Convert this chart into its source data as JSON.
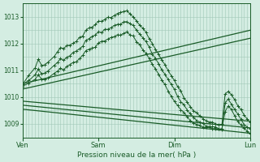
{
  "title": "Pression niveau de la mer( hPa )",
  "bg_color": "#d4ede2",
  "grid_color": "#a0c8b8",
  "line_color": "#1a5c28",
  "ylim": [
    1008.5,
    1013.5
  ],
  "yticks": [
    1009,
    1010,
    1011,
    1012,
    1013
  ],
  "xtick_labels": [
    "Ven",
    "Sam",
    "Dim",
    "Lun"
  ],
  "xtick_positions": [
    0,
    72,
    144,
    216
  ],
  "total_points": 217,
  "smooth_lines": [
    {
      "x0": 0,
      "y0": 1010.5,
      "x1": 216,
      "y1": 1012.5
    },
    {
      "x0": 0,
      "y0": 1010.3,
      "x1": 216,
      "y1": 1012.2
    },
    {
      "x0": 0,
      "y0": 1009.85,
      "x1": 216,
      "y1": 1009.1
    },
    {
      "x0": 0,
      "y0": 1009.7,
      "x1": 216,
      "y1": 1008.85
    },
    {
      "x0": 0,
      "y0": 1009.55,
      "x1": 216,
      "y1": 1008.65
    }
  ],
  "jagged_series": [
    {
      "points": [
        [
          0,
          1010.5
        ],
        [
          6,
          1010.8
        ],
        [
          12,
          1011.1
        ],
        [
          15,
          1011.4
        ],
        [
          18,
          1011.15
        ],
        [
          21,
          1011.2
        ],
        [
          24,
          1011.3
        ],
        [
          30,
          1011.55
        ],
        [
          33,
          1011.7
        ],
        [
          36,
          1011.85
        ],
        [
          39,
          1011.8
        ],
        [
          42,
          1011.9
        ],
        [
          45,
          1011.95
        ],
        [
          48,
          1012.05
        ],
        [
          51,
          1012.1
        ],
        [
          54,
          1012.2
        ],
        [
          57,
          1012.3
        ],
        [
          60,
          1012.5
        ],
        [
          63,
          1012.55
        ],
        [
          66,
          1012.65
        ],
        [
          69,
          1012.7
        ],
        [
          72,
          1012.8
        ],
        [
          75,
          1012.85
        ],
        [
          78,
          1012.9
        ],
        [
          81,
          1012.95
        ],
        [
          84,
          1013.0
        ],
        [
          87,
          1013.05
        ],
        [
          90,
          1013.1
        ],
        [
          93,
          1013.15
        ],
        [
          96,
          1013.2
        ],
        [
          99,
          1013.25
        ],
        [
          102,
          1013.1
        ],
        [
          105,
          1013.0
        ],
        [
          108,
          1012.85
        ],
        [
          111,
          1012.7
        ],
        [
          114,
          1012.55
        ],
        [
          117,
          1012.4
        ],
        [
          120,
          1012.2
        ],
        [
          123,
          1012.0
        ],
        [
          126,
          1011.8
        ],
        [
          129,
          1011.6
        ],
        [
          132,
          1011.4
        ],
        [
          135,
          1011.2
        ],
        [
          138,
          1011.0
        ],
        [
          141,
          1010.8
        ],
        [
          144,
          1010.6
        ],
        [
          147,
          1010.4
        ],
        [
          150,
          1010.2
        ],
        [
          153,
          1010.0
        ],
        [
          156,
          1009.8
        ],
        [
          159,
          1009.65
        ],
        [
          162,
          1009.5
        ],
        [
          165,
          1009.4
        ],
        [
          168,
          1009.3
        ],
        [
          171,
          1009.2
        ],
        [
          174,
          1009.15
        ],
        [
          177,
          1009.1
        ],
        [
          180,
          1009.05
        ],
        [
          183,
          1009.0
        ],
        [
          186,
          1008.95
        ],
        [
          189,
          1008.95
        ],
        [
          192,
          1010.1
        ],
        [
          195,
          1010.25
        ],
        [
          198,
          1010.1
        ],
        [
          201,
          1009.9
        ],
        [
          204,
          1009.7
        ],
        [
          207,
          1009.5
        ],
        [
          210,
          1009.3
        ],
        [
          213,
          1009.15
        ],
        [
          216,
          1009.05
        ]
      ]
    },
    {
      "points": [
        [
          0,
          1010.45
        ],
        [
          6,
          1010.65
        ],
        [
          12,
          1010.85
        ],
        [
          15,
          1011.05
        ],
        [
          18,
          1010.85
        ],
        [
          21,
          1010.9
        ],
        [
          24,
          1011.0
        ],
        [
          30,
          1011.2
        ],
        [
          33,
          1011.3
        ],
        [
          36,
          1011.45
        ],
        [
          39,
          1011.4
        ],
        [
          42,
          1011.5
        ],
        [
          45,
          1011.55
        ],
        [
          48,
          1011.65
        ],
        [
          51,
          1011.7
        ],
        [
          54,
          1011.8
        ],
        [
          57,
          1011.9
        ],
        [
          60,
          1012.1
        ],
        [
          63,
          1012.15
        ],
        [
          66,
          1012.25
        ],
        [
          69,
          1012.3
        ],
        [
          72,
          1012.4
        ],
        [
          75,
          1012.45
        ],
        [
          78,
          1012.5
        ],
        [
          81,
          1012.55
        ],
        [
          84,
          1012.6
        ],
        [
          87,
          1012.65
        ],
        [
          90,
          1012.7
        ],
        [
          93,
          1012.75
        ],
        [
          96,
          1012.8
        ],
        [
          99,
          1012.85
        ],
        [
          102,
          1012.75
        ],
        [
          105,
          1012.65
        ],
        [
          108,
          1012.5
        ],
        [
          111,
          1012.35
        ],
        [
          114,
          1012.2
        ],
        [
          117,
          1012.05
        ],
        [
          120,
          1011.85
        ],
        [
          123,
          1011.65
        ],
        [
          126,
          1011.45
        ],
        [
          129,
          1011.25
        ],
        [
          132,
          1011.05
        ],
        [
          135,
          1010.85
        ],
        [
          138,
          1010.65
        ],
        [
          141,
          1010.45
        ],
        [
          144,
          1010.25
        ],
        [
          147,
          1010.05
        ],
        [
          150,
          1009.85
        ],
        [
          153,
          1009.7
        ],
        [
          156,
          1009.55
        ],
        [
          159,
          1009.4
        ],
        [
          162,
          1009.25
        ],
        [
          165,
          1009.15
        ],
        [
          168,
          1009.05
        ],
        [
          171,
          1009.0
        ],
        [
          174,
          1008.95
        ],
        [
          177,
          1008.9
        ],
        [
          180,
          1008.87
        ],
        [
          183,
          1008.85
        ],
        [
          186,
          1008.83
        ],
        [
          189,
          1008.82
        ],
        [
          192,
          1009.75
        ],
        [
          195,
          1009.9
        ],
        [
          198,
          1009.75
        ],
        [
          201,
          1009.55
        ],
        [
          204,
          1009.35
        ],
        [
          207,
          1009.15
        ],
        [
          210,
          1009.0
        ],
        [
          213,
          1008.87
        ],
        [
          216,
          1008.78
        ]
      ]
    },
    {
      "points": [
        [
          0,
          1010.4
        ],
        [
          6,
          1010.55
        ],
        [
          12,
          1010.7
        ],
        [
          15,
          1010.85
        ],
        [
          18,
          1010.65
        ],
        [
          21,
          1010.7
        ],
        [
          24,
          1010.75
        ],
        [
          30,
          1010.9
        ],
        [
          33,
          1011.0
        ],
        [
          36,
          1011.1
        ],
        [
          39,
          1011.05
        ],
        [
          42,
          1011.15
        ],
        [
          45,
          1011.2
        ],
        [
          48,
          1011.3
        ],
        [
          51,
          1011.35
        ],
        [
          54,
          1011.45
        ],
        [
          57,
          1011.55
        ],
        [
          60,
          1011.7
        ],
        [
          63,
          1011.75
        ],
        [
          66,
          1011.85
        ],
        [
          69,
          1011.9
        ],
        [
          72,
          1012.0
        ],
        [
          75,
          1012.05
        ],
        [
          78,
          1012.1
        ],
        [
          81,
          1012.15
        ],
        [
          84,
          1012.2
        ],
        [
          87,
          1012.25
        ],
        [
          90,
          1012.3
        ],
        [
          93,
          1012.35
        ],
        [
          96,
          1012.4
        ],
        [
          99,
          1012.45
        ],
        [
          102,
          1012.35
        ],
        [
          105,
          1012.25
        ],
        [
          108,
          1012.1
        ],
        [
          111,
          1011.95
        ],
        [
          114,
          1011.8
        ],
        [
          117,
          1011.65
        ],
        [
          120,
          1011.45
        ],
        [
          123,
          1011.25
        ],
        [
          126,
          1011.05
        ],
        [
          129,
          1010.85
        ],
        [
          132,
          1010.65
        ],
        [
          135,
          1010.45
        ],
        [
          138,
          1010.25
        ],
        [
          141,
          1010.05
        ],
        [
          144,
          1009.85
        ],
        [
          147,
          1009.7
        ],
        [
          150,
          1009.55
        ],
        [
          153,
          1009.4
        ],
        [
          156,
          1009.25
        ],
        [
          159,
          1009.15
        ],
        [
          162,
          1009.05
        ],
        [
          165,
          1009.0
        ],
        [
          168,
          1008.95
        ],
        [
          171,
          1008.9
        ],
        [
          174,
          1008.87
        ],
        [
          177,
          1008.85
        ],
        [
          180,
          1008.83
        ],
        [
          183,
          1008.82
        ],
        [
          186,
          1008.8
        ],
        [
          189,
          1008.8
        ],
        [
          192,
          1009.5
        ],
        [
          195,
          1009.65
        ],
        [
          198,
          1009.5
        ],
        [
          201,
          1009.3
        ],
        [
          204,
          1009.1
        ],
        [
          207,
          1008.95
        ],
        [
          210,
          1008.82
        ],
        [
          213,
          1008.72
        ],
        [
          216,
          1008.65
        ]
      ]
    }
  ]
}
